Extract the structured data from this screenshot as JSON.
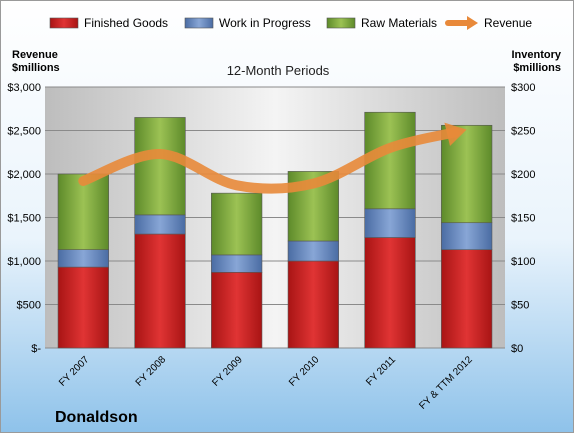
{
  "chart_data": {
    "type": "bar",
    "stacked": true,
    "title": "12-Month Periods",
    "company": "Donaldson",
    "left_axis_title": [
      "Revenue",
      "$millions"
    ],
    "right_axis_title": [
      "Inventory",
      "$millions"
    ],
    "categories": [
      "FY 2007",
      "FY 2008",
      "FY 2009",
      "FY 2010",
      "FY 2011",
      "FY & TTM 2012"
    ],
    "series": [
      {
        "name": "Finished Goods",
        "color": "#cc2020",
        "values": [
          93,
          131,
          87,
          100,
          127,
          113
        ]
      },
      {
        "name": "Work in Progress",
        "color": "#5b7fb8",
        "values": [
          20,
          22,
          20,
          23,
          33,
          31
        ]
      },
      {
        "name": "Raw Materials",
        "color": "#7ca63c",
        "values": [
          87,
          112,
          71,
          80,
          111,
          112
        ]
      }
    ],
    "line": {
      "name": "Revenue",
      "color": "#e8893a",
      "values": [
        1920,
        2230,
        1870,
        1890,
        2300,
        2510
      ]
    },
    "left_axis": {
      "min": 0,
      "max": 3000,
      "ticks": [
        0,
        500,
        1000,
        1500,
        2000,
        2500,
        3000
      ],
      "tick_labels": [
        "$-",
        "$500",
        "$1,000",
        "$1,500",
        "$2,000",
        "$2,500",
        "$3,000"
      ]
    },
    "right_axis": {
      "min": 0,
      "max": 300,
      "ticks": [
        0,
        50,
        100,
        150,
        200,
        250,
        300
      ],
      "tick_labels": [
        "$0",
        "$50",
        "$100",
        "$150",
        "$200",
        "$250",
        "$300"
      ]
    },
    "grid": true,
    "legend_position": "top"
  }
}
